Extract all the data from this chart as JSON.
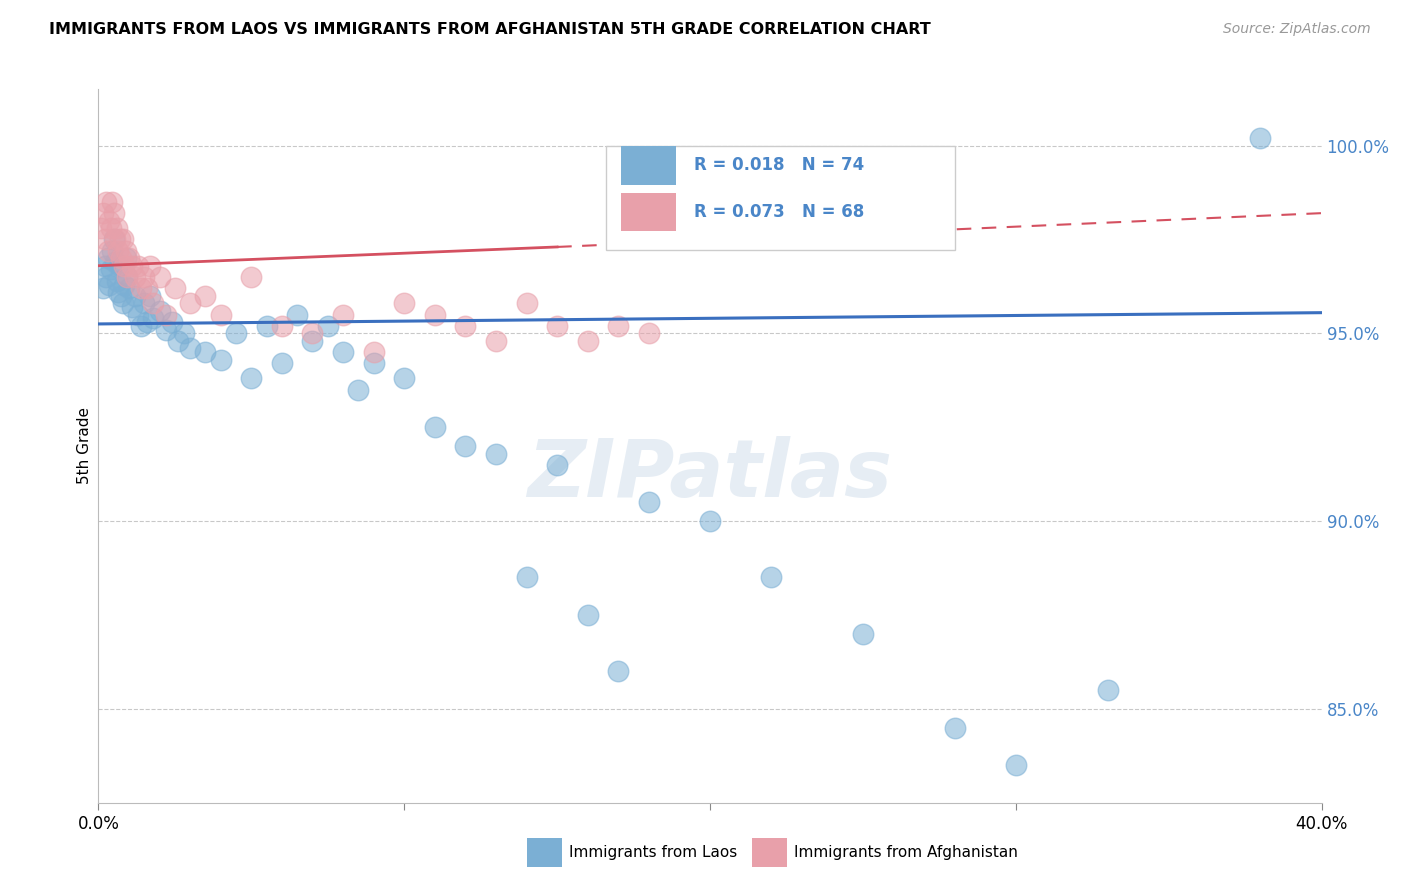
{
  "title": "IMMIGRANTS FROM LAOS VS IMMIGRANTS FROM AFGHANISTAN 5TH GRADE CORRELATION CHART",
  "source": "Source: ZipAtlas.com",
  "ylabel": "5th Grade",
  "legend_label_blue": "Immigrants from Laos",
  "legend_label_pink": "Immigrants from Afghanistan",
  "R_blue": 0.018,
  "N_blue": 74,
  "R_pink": 0.073,
  "N_pink": 68,
  "xlim": [
    0.0,
    40.0
  ],
  "ylim": [
    82.5,
    101.5
  ],
  "color_blue": "#7bafd4",
  "color_pink": "#e8a0aa",
  "color_blue_line": "#3a6fbf",
  "color_pink_line": "#d45060",
  "color_ytick": "#4a86c8",
  "watermark_text": "ZIPatlas",
  "blue_scatter_x": [
    0.15,
    0.2,
    0.25,
    0.3,
    0.35,
    0.4,
    0.45,
    0.5,
    0.55,
    0.6,
    0.65,
    0.7,
    0.75,
    0.8,
    0.85,
    0.9,
    0.95,
    1.0,
    1.1,
    1.2,
    1.3,
    1.4,
    1.5,
    1.6,
    1.7,
    1.8,
    2.0,
    2.2,
    2.4,
    2.6,
    2.8,
    3.0,
    3.5,
    4.0,
    4.5,
    5.0,
    5.5,
    6.0,
    6.5,
    7.0,
    7.5,
    8.0,
    8.5,
    9.0,
    10.0,
    11.0,
    12.0,
    13.0,
    14.0,
    15.0,
    16.0,
    17.0,
    18.0,
    20.0,
    22.0,
    25.0,
    28.0,
    30.0,
    33.0,
    38.0
  ],
  "blue_scatter_y": [
    96.2,
    96.8,
    96.5,
    97.0,
    96.3,
    96.7,
    97.2,
    97.5,
    96.9,
    96.4,
    96.1,
    96.8,
    96.0,
    95.8,
    96.3,
    97.0,
    96.5,
    96.2,
    95.7,
    96.0,
    95.5,
    95.2,
    95.8,
    95.3,
    96.0,
    95.4,
    95.6,
    95.1,
    95.3,
    94.8,
    95.0,
    94.6,
    94.5,
    94.3,
    95.0,
    93.8,
    95.2,
    94.2,
    95.5,
    94.8,
    95.2,
    94.5,
    93.5,
    94.2,
    93.8,
    92.5,
    92.0,
    91.8,
    88.5,
    91.5,
    87.5,
    86.0,
    90.5,
    90.0,
    88.5,
    87.0,
    84.5,
    83.5,
    85.5,
    100.2
  ],
  "pink_scatter_x": [
    0.1,
    0.15,
    0.2,
    0.25,
    0.3,
    0.35,
    0.4,
    0.45,
    0.5,
    0.55,
    0.6,
    0.65,
    0.7,
    0.75,
    0.8,
    0.85,
    0.9,
    0.95,
    1.0,
    1.1,
    1.2,
    1.3,
    1.4,
    1.5,
    1.6,
    1.7,
    1.8,
    2.0,
    2.2,
    2.5,
    3.0,
    3.5,
    4.0,
    5.0,
    6.0,
    7.0,
    8.0,
    9.0,
    10.0,
    11.0,
    12.0,
    13.0,
    14.0,
    15.0,
    16.0,
    17.0,
    18.0
  ],
  "pink_scatter_y": [
    97.8,
    98.2,
    97.5,
    98.5,
    97.2,
    98.0,
    97.8,
    98.5,
    98.2,
    97.5,
    97.8,
    97.2,
    97.5,
    97.0,
    97.5,
    96.8,
    97.2,
    96.5,
    97.0,
    96.8,
    96.5,
    96.8,
    96.2,
    96.5,
    96.2,
    96.8,
    95.8,
    96.5,
    95.5,
    96.2,
    95.8,
    96.0,
    95.5,
    96.5,
    95.2,
    95.0,
    95.5,
    94.5,
    95.8,
    95.5,
    95.2,
    94.8,
    95.8,
    95.2,
    94.8,
    95.2,
    95.0
  ],
  "blue_line_x0": 0.0,
  "blue_line_x1": 40.0,
  "blue_line_y0": 95.25,
  "blue_line_y1": 95.55,
  "pink_line_solid_x0": 0.0,
  "pink_line_solid_x1": 15.0,
  "pink_line_y0": 96.8,
  "pink_line_y1": 97.3,
  "pink_line_dash_x0": 15.0,
  "pink_line_dash_x1": 40.0,
  "pink_line_dash_y0": 97.3,
  "pink_line_dash_y1": 98.2
}
